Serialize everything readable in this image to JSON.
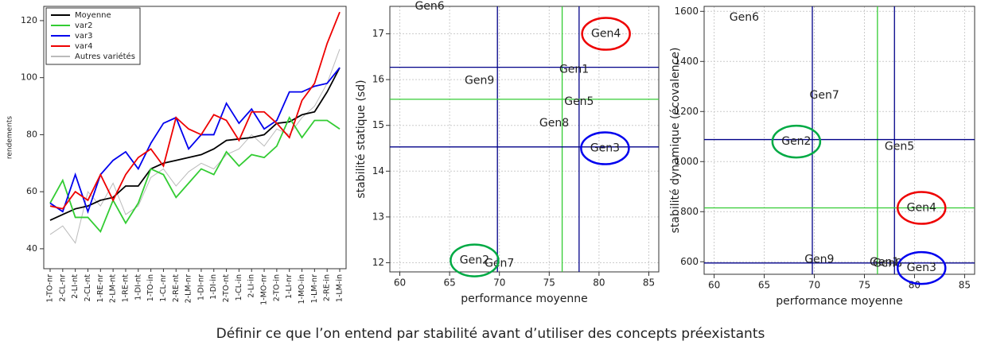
{
  "chart_data": [
    {
      "type": "line",
      "ylabel": "rendements",
      "categories": [
        "1-TO-nr",
        "2-CL-nr",
        "2-LI-nt",
        "2-CL-nt",
        "1-RE-nr",
        "2-LM-nt",
        "1-RE-nt",
        "1-DI-nt",
        "1-TO-in",
        "1-CL-nr",
        "2-RE-nt",
        "2-LM-nr",
        "1-DI-nr",
        "1-DI-in",
        "2-TO-nt",
        "1-CL-in",
        "2-LI-in",
        "1-MO-nr",
        "2-TO-in",
        "1-LI-nr",
        "1-MO-in",
        "1-LM-nr",
        "2-RE-in",
        "1-LM-in"
      ],
      "series": [
        {
          "name": "Autres variétés",
          "color": "#bbbbbb",
          "values": [
            45,
            48,
            42,
            60,
            55,
            63,
            52,
            55,
            65,
            68,
            62,
            67,
            70,
            68,
            73,
            75,
            80,
            76,
            82,
            80,
            86,
            90,
            98,
            110
          ]
        },
        {
          "name": "Moyenne",
          "color": "#000000",
          "values": [
            50,
            52,
            54,
            55,
            57,
            58,
            62,
            62,
            68,
            70,
            71,
            72,
            73,
            75,
            78,
            78.5,
            79,
            80,
            84,
            84.5,
            87,
            88,
            95,
            103.5
          ]
        },
        {
          "name": "var2",
          "color": "#33cc33",
          "values": [
            56,
            64,
            51,
            51,
            46,
            57,
            49,
            56,
            68,
            66,
            58,
            63,
            68,
            66,
            74,
            69,
            73,
            72,
            76,
            86,
            79,
            85,
            85,
            82
          ]
        },
        {
          "name": "var3",
          "color": "#0000ee",
          "values": [
            56,
            53,
            66,
            53,
            66,
            71,
            74,
            68,
            77,
            84,
            86,
            75,
            80,
            80,
            91,
            84,
            89,
            82,
            85,
            95,
            95,
            97,
            98,
            103.5
          ]
        },
        {
          "name": "var4",
          "color": "#ee0000",
          "values": [
            55,
            54,
            60,
            57,
            66,
            57,
            66,
            72,
            75,
            69,
            86,
            82,
            80,
            87,
            85,
            78,
            88,
            88,
            84,
            79,
            92,
            98,
            112,
            123
          ]
        }
      ],
      "legend_order": [
        1,
        2,
        3,
        4,
        0
      ],
      "ylim": [
        33,
        125
      ],
      "yticks": [
        40,
        60,
        80,
        100,
        120
      ],
      "grid": false
    },
    {
      "type": "scatter",
      "xlabel": "performance moyenne",
      "ylabel": "stabilité statique (sd)",
      "labels": [
        "Gen6",
        "Gen4",
        "Gen1",
        "Gen9",
        "Gen5",
        "Gen8",
        "Gen3",
        "Gen2",
        "Gen7"
      ],
      "x": [
        63,
        80.7,
        77.5,
        68,
        78,
        75.5,
        80.6,
        67.5,
        70
      ],
      "values": [
        17.6,
        17.0,
        16.22,
        15.98,
        15.52,
        15.05,
        14.5,
        12.05,
        11.98
      ],
      "xlim": [
        59,
        86
      ],
      "ylim": [
        11.8,
        17.6
      ],
      "xticks": [
        60,
        65,
        70,
        75,
        80,
        85
      ],
      "yticks": [
        12,
        13,
        14,
        15,
        16,
        17
      ],
      "grid": true,
      "vlines": [
        {
          "value": 69.8,
          "color": "#000088"
        },
        {
          "value": 78,
          "color": "#000088"
        },
        {
          "value": 76.3,
          "color": "#33cc33"
        }
      ],
      "hlines": [
        {
          "value": 16.27,
          "color": "#000088"
        },
        {
          "value": 14.53,
          "color": "#000088"
        },
        {
          "value": 15.57,
          "color": "#33cc33"
        }
      ],
      "highlights": [
        {
          "name": "Gen4",
          "color": "#ee0000"
        },
        {
          "name": "Gen3",
          "color": "#0000ee"
        },
        {
          "name": "Gen2",
          "color": "#00aa44"
        }
      ]
    },
    {
      "type": "scatter",
      "xlabel": "performance moyenne",
      "ylabel": "stabilité dynamique (écovalence)",
      "labels": [
        "Gen6",
        "Gen7",
        "Gen2",
        "Gen5",
        "Gen4",
        "Gen9",
        "Gen1",
        "Gen8",
        "Gen3"
      ],
      "x": [
        63,
        71,
        68.2,
        78.5,
        80.7,
        70.5,
        77,
        77.3,
        80.7
      ],
      "values": [
        1575,
        1265,
        1080,
        1060,
        815,
        608,
        597,
        593,
        575
      ],
      "xlim": [
        59,
        86
      ],
      "ylim": [
        550,
        1620
      ],
      "xticks": [
        60,
        65,
        70,
        75,
        80,
        85
      ],
      "yticks": [
        600,
        800,
        1000,
        1200,
        1400,
        1600
      ],
      "grid": true,
      "vlines": [
        {
          "value": 69.8,
          "color": "#000088"
        },
        {
          "value": 78,
          "color": "#000088"
        },
        {
          "value": 76.3,
          "color": "#33cc33"
        }
      ],
      "hlines": [
        {
          "value": 1088,
          "color": "#000088"
        },
        {
          "value": 595,
          "color": "#000088"
        },
        {
          "value": 815,
          "color": "#33cc33"
        }
      ],
      "highlights": [
        {
          "name": "Gen2",
          "color": "#00aa44"
        },
        {
          "name": "Gen4",
          "color": "#ee0000"
        },
        {
          "name": "Gen3",
          "color": "#0000ee"
        }
      ]
    }
  ],
  "caption": "Définir ce que l’on entend par stabilité avant d’utiliser des concepts préexistants"
}
